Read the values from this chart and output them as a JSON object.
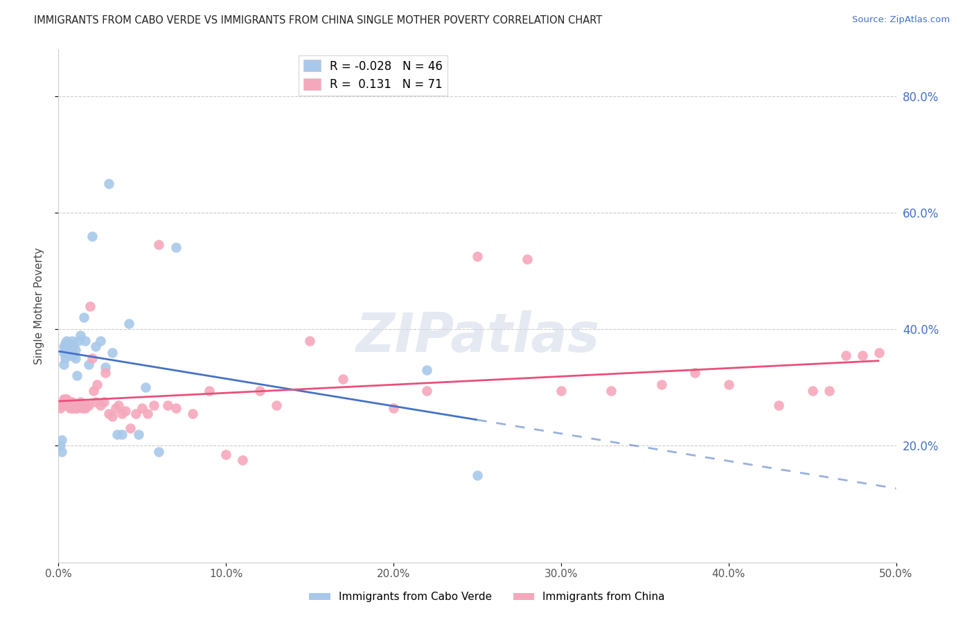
{
  "title": "IMMIGRANTS FROM CABO VERDE VS IMMIGRANTS FROM CHINA SINGLE MOTHER POVERTY CORRELATION CHART",
  "source": "Source: ZipAtlas.com",
  "ylabel": "Single Mother Poverty",
  "xlim": [
    0.0,
    0.5
  ],
  "ylim": [
    0.0,
    0.88
  ],
  "yticks": [
    0.2,
    0.4,
    0.6,
    0.8
  ],
  "ytick_labels": [
    "20.0%",
    "40.0%",
    "60.0%",
    "80.0%"
  ],
  "xticks": [
    0.0,
    0.1,
    0.2,
    0.3,
    0.4,
    0.5
  ],
  "xtick_labels": [
    "0.0%",
    "10.0%",
    "20.0%",
    "30.0%",
    "40.0%",
    "50.0%"
  ],
  "cabo_verde_R": -0.028,
  "cabo_verde_N": 46,
  "china_R": 0.131,
  "china_N": 71,
  "cabo_verde_color": "#a8c8ea",
  "china_color": "#f5a8bc",
  "cabo_verde_line_color": "#4472c4",
  "china_line_color": "#e8507a",
  "cabo_verde_x": [
    0.001,
    0.002,
    0.002,
    0.003,
    0.003,
    0.003,
    0.004,
    0.004,
    0.004,
    0.005,
    0.005,
    0.005,
    0.005,
    0.006,
    0.006,
    0.006,
    0.007,
    0.007,
    0.008,
    0.008,
    0.008,
    0.009,
    0.009,
    0.01,
    0.01,
    0.011,
    0.012,
    0.013,
    0.015,
    0.016,
    0.018,
    0.02,
    0.022,
    0.025,
    0.028,
    0.03,
    0.032,
    0.035,
    0.038,
    0.042,
    0.048,
    0.052,
    0.06,
    0.07,
    0.22,
    0.25
  ],
  "cabo_verde_y": [
    0.2,
    0.19,
    0.21,
    0.34,
    0.36,
    0.37,
    0.35,
    0.37,
    0.375,
    0.36,
    0.37,
    0.375,
    0.38,
    0.365,
    0.37,
    0.37,
    0.375,
    0.355,
    0.38,
    0.37,
    0.36,
    0.37,
    0.355,
    0.35,
    0.365,
    0.32,
    0.38,
    0.39,
    0.42,
    0.38,
    0.34,
    0.56,
    0.37,
    0.38,
    0.335,
    0.65,
    0.36,
    0.22,
    0.22,
    0.41,
    0.22,
    0.3,
    0.19,
    0.54,
    0.33,
    0.15
  ],
  "china_x": [
    0.001,
    0.002,
    0.003,
    0.003,
    0.004,
    0.004,
    0.005,
    0.005,
    0.006,
    0.006,
    0.007,
    0.007,
    0.008,
    0.008,
    0.009,
    0.009,
    0.01,
    0.01,
    0.011,
    0.012,
    0.013,
    0.014,
    0.015,
    0.016,
    0.017,
    0.018,
    0.019,
    0.02,
    0.021,
    0.022,
    0.023,
    0.025,
    0.027,
    0.028,
    0.03,
    0.032,
    0.034,
    0.036,
    0.038,
    0.04,
    0.043,
    0.046,
    0.05,
    0.053,
    0.057,
    0.06,
    0.065,
    0.07,
    0.08,
    0.09,
    0.1,
    0.11,
    0.12,
    0.13,
    0.15,
    0.17,
    0.2,
    0.22,
    0.25,
    0.28,
    0.3,
    0.33,
    0.36,
    0.38,
    0.4,
    0.43,
    0.45,
    0.46,
    0.47,
    0.48,
    0.49
  ],
  "china_y": [
    0.265,
    0.27,
    0.28,
    0.27,
    0.275,
    0.28,
    0.27,
    0.28,
    0.27,
    0.275,
    0.265,
    0.27,
    0.275,
    0.265,
    0.265,
    0.27,
    0.265,
    0.27,
    0.265,
    0.27,
    0.275,
    0.265,
    0.265,
    0.265,
    0.27,
    0.27,
    0.44,
    0.35,
    0.295,
    0.275,
    0.305,
    0.27,
    0.275,
    0.325,
    0.255,
    0.25,
    0.265,
    0.27,
    0.255,
    0.26,
    0.23,
    0.255,
    0.265,
    0.255,
    0.27,
    0.545,
    0.27,
    0.265,
    0.255,
    0.295,
    0.185,
    0.175,
    0.295,
    0.27,
    0.38,
    0.315,
    0.265,
    0.295,
    0.525,
    0.52,
    0.295,
    0.295,
    0.305,
    0.325,
    0.305,
    0.27,
    0.295,
    0.295,
    0.355,
    0.355,
    0.36
  ]
}
